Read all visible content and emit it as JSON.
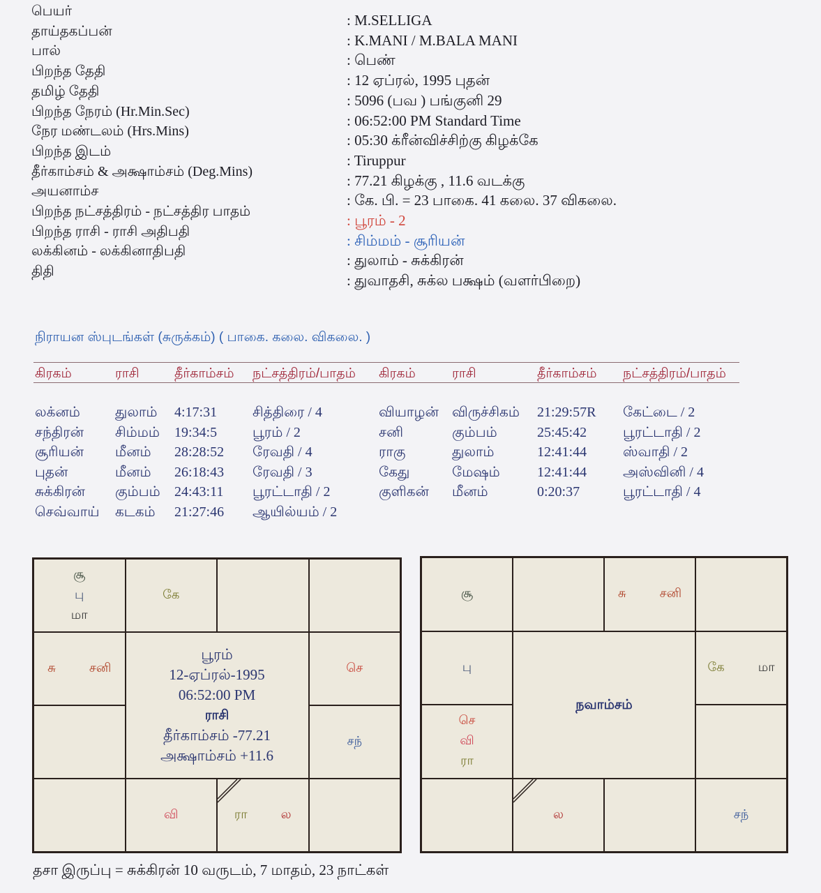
{
  "info": [
    {
      "label": "பெயர்",
      "value": ": M.SELLIGA"
    },
    {
      "label": "தாய்தகப்பன்",
      "value": ": K.MANI / M.BALA MANI"
    },
    {
      "label": "பால்",
      "value": ": பெண்"
    },
    {
      "label": "பிறந்த தேதி",
      "value": ": 12 ஏப்ரல், 1995  புதன்"
    },
    {
      "label": "தமிழ் தேதி",
      "value": ": 5096 (பவ ) பங்குனி 29"
    },
    {
      "label": "பிறந்த நேரம் (Hr.Min.Sec)",
      "value": ": 06:52:00 PM Standard Time"
    },
    {
      "label": "நேர மண்டலம் (Hrs.Mins)",
      "value": ": 05:30 க்ரீன்விச்சிற்கு கிழக்கே"
    },
    {
      "label": "பிறந்த இடம்",
      "value": ": Tiruppur"
    },
    {
      "label": "தீர்காம்சம் & அக்ஷாம்சம் (Deg.Mins)",
      "value": ": 77.21 கிழக்கு , 11.6 வடக்கு"
    },
    {
      "label": "அயனாம்ச",
      "value": ": கே. பி. = 23 பாகை. 41 கலை. 37 விகலை."
    },
    {
      "label": "பிறந்த நட்சத்திரம் - நட்சத்திர பாதம்",
      "value": ": பூரம் - 2",
      "color": "#d0443a"
    },
    {
      "label": "பிறந்த ராசி - ராசி அதிபதி",
      "value": ": சிம்மம் - சூரியன்",
      "color": "#2d62b8"
    },
    {
      "label": "லக்கினம் - லக்கினாதிபதி",
      "value": ": துலாம் - சுக்கிரன்"
    },
    {
      "label": "திதி",
      "value": ": துவாதசி, சுக்ல பக்ஷம் (வளர்பிறை)"
    }
  ],
  "planets": {
    "title": "நிராயன ஸ்புடங்கள் (சுருக்கம்) ( பாகை. கலை. விகலை. )",
    "headers": [
      "கிரகம்",
      "ராசி",
      "தீர்காம்சம்",
      "நட்சத்திரம்/பாதம்",
      "கிரகம்",
      "ராசி",
      "தீர்காம்சம்",
      "நட்சத்திரம்/பாதம்"
    ],
    "rows": [
      [
        "லக்னம்",
        "துலாம்",
        "4:17:31",
        "சித்திரை / 4",
        "வியாழன்",
        "விருச்சிகம்",
        "21:29:57R",
        "கேட்டை / 2"
      ],
      [
        "சந்திரன்",
        "சிம்மம்",
        "19:34:5",
        "பூரம் / 2",
        "சனி",
        "கும்பம்",
        "25:45:42",
        "பூரட்டாதி / 2"
      ],
      [
        "சூரியன்",
        "மீனம்",
        "28:28:52",
        "ரேவதி / 4",
        "ராகு",
        "துலாம்",
        "12:41:44",
        "ஸ்வாதி / 2"
      ],
      [
        "புதன்",
        "மீனம்",
        "26:18:43",
        "ரேவதி / 3",
        "கேது",
        "மேஷம்",
        "12:41:44",
        "அஸ்வினி / 4"
      ],
      [
        "சுக்கிரன்",
        "கும்பம்",
        "24:43:11",
        "பூரட்டாதி / 2",
        "குளிகன்",
        "மீனம்",
        "0:20:37",
        "பூரட்டாதி / 4"
      ],
      [
        "செவ்வாய்",
        "கடகம்",
        "21:27:46",
        "ஆயில்யம் / 2",
        "",
        "",
        "",
        ""
      ]
    ]
  },
  "rasi_chart": {
    "center": [
      "பூரம்",
      "12-ஏப்ரல்-1995",
      "06:52:00 PM",
      "ராசி",
      "தீர்காம்சம்   -77.21",
      "அக்ஷாம்சம்   +11.6"
    ],
    "cells": {
      "1-1": [
        [
          {
            "t": "சூ",
            "c": "#3c4a3c"
          }
        ],
        [
          {
            "t": "பு",
            "c": "#4a5a7a"
          }
        ],
        [
          {
            "t": "மா",
            "c": "#3a3a3a"
          }
        ]
      ],
      "1-2": [
        [
          {
            "t": "கே",
            "c": "#7a7a30"
          }
        ]
      ],
      "2-1": [
        [
          {
            "t": "சு",
            "c": "#b0442a"
          },
          {
            "t": "சனி",
            "c": "#b0442a"
          }
        ]
      ],
      "2-4": [
        [
          {
            "t": "செ",
            "c": "#c8473a"
          }
        ]
      ],
      "3-4": [
        [
          {
            "t": "சந்",
            "c": "#3a5a9a"
          }
        ]
      ],
      "4-2": [
        [
          {
            "t": "வி",
            "c": "#d04a5a"
          }
        ]
      ],
      "4-3": [
        [
          {
            "t": "ரா",
            "c": "#7a7a30"
          },
          {
            "t": "ல",
            "c": "#b03030"
          }
        ]
      ]
    },
    "lagna_cell": "4-3"
  },
  "navamsa_chart": {
    "center": [
      "நவாம்சம்"
    ],
    "cells": {
      "1-1": [
        [
          {
            "t": "சூ",
            "c": "#3c4a3c"
          }
        ]
      ],
      "1-3": [
        [
          {
            "t": "சு",
            "c": "#b0442a"
          },
          {
            "t": "சனி",
            "c": "#b0442a"
          }
        ]
      ],
      "2-1": [
        [
          {
            "t": "பு",
            "c": "#4a5a7a"
          }
        ]
      ],
      "2-4": [
        [
          {
            "t": "கே",
            "c": "#7a7a30"
          },
          {
            "t": "மா",
            "c": "#3a3a3a"
          }
        ]
      ],
      "3-1": [
        [
          {
            "t": "செ",
            "c": "#c8473a"
          }
        ],
        [
          {
            "t": "வி",
            "c": "#d04a5a"
          }
        ],
        [
          {
            "t": "ரா",
            "c": "#7a7a30"
          }
        ]
      ],
      "4-2": [
        [
          {
            "t": "ல",
            "c": "#b03030"
          }
        ]
      ],
      "4-4": [
        [
          {
            "t": "சந்",
            "c": "#3a5a9a"
          }
        ]
      ]
    },
    "lagna_cell": "4-2"
  },
  "dasa": "தசா இருப்பு = சுக்கிரன் 10 வருடம், 7 மாதம், 23 நாட்கள்"
}
